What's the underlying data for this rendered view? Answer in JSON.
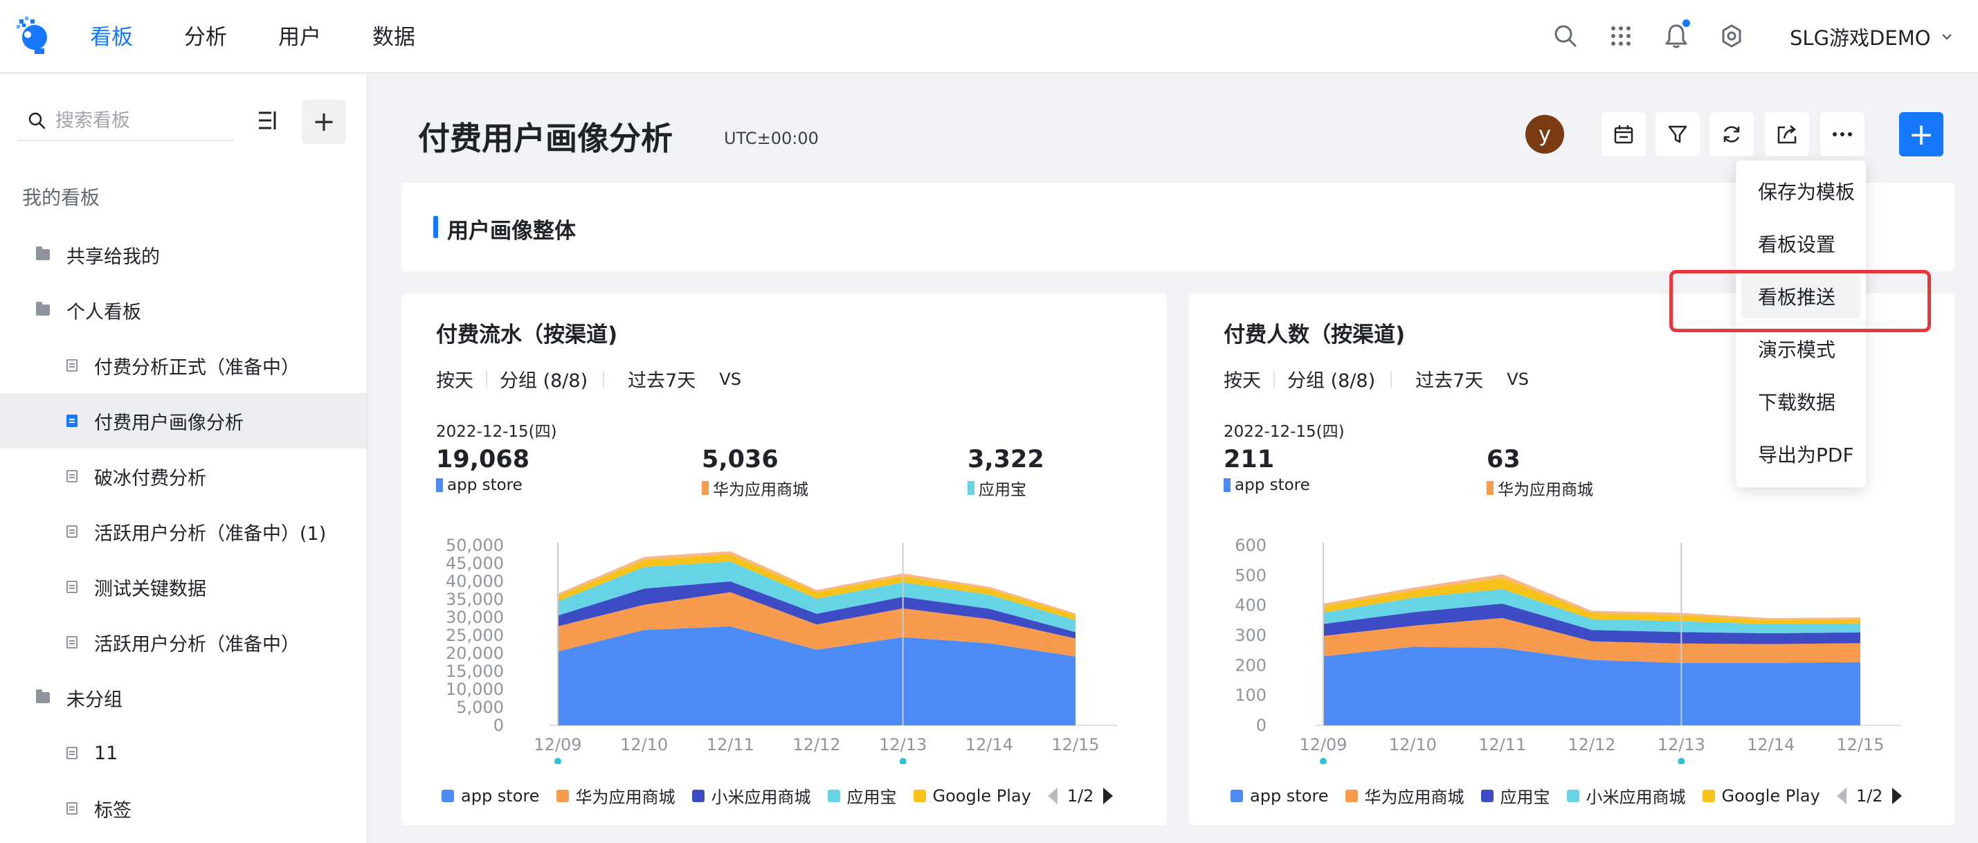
{
  "nav": {
    "items": [
      "看板",
      "分析",
      "用户",
      "数据"
    ],
    "project": "SLG游戏DEMO"
  },
  "sidebar": {
    "search_placeholder": "搜索看板",
    "section_title": "我的看板",
    "tree": [
      {
        "label": "共享给我的",
        "type": "folder",
        "level": 0
      },
      {
        "label": "个人看板",
        "type": "folder",
        "level": 0
      },
      {
        "label": "付费分析正式（准备中）",
        "type": "doc",
        "level": 1
      },
      {
        "label": "付费用户画像分析",
        "type": "doc",
        "level": 1,
        "selected": true
      },
      {
        "label": "破冰付费分析",
        "type": "doc",
        "level": 1
      },
      {
        "label": "活跃用户分析（准备中）(1)",
        "type": "doc",
        "level": 1
      },
      {
        "label": "测试关键数据",
        "type": "doc",
        "level": 1
      },
      {
        "label": "活跃用户分析（准备中）",
        "type": "doc",
        "level": 1
      },
      {
        "label": "未分组",
        "type": "folder",
        "level": 0
      },
      {
        "label": "11",
        "type": "doc",
        "level": 1
      },
      {
        "label": "标签",
        "type": "doc",
        "level": 1
      }
    ]
  },
  "header": {
    "title": "付费用户画像分析",
    "timezone": "UTC±00:00",
    "avatar_letter": "y",
    "tools": [
      "calendar-icon",
      "filter-icon",
      "refresh-icon",
      "share-icon",
      "more-icon"
    ]
  },
  "section": {
    "title": "用户画像整体"
  },
  "dropdown": {
    "items": [
      "保存为模板",
      "看板设置",
      "看板推送",
      "演示模式",
      "下载数据",
      "导出为PDF"
    ],
    "highlighted_index": 2
  },
  "colors": {
    "blue": "#4c8bf5",
    "orange": "#f89b4f",
    "indigo": "#3d4cc4",
    "cyan": "#66d4e4",
    "yellow": "#f7c21a",
    "peach": "#f7b78a",
    "accent": "#1677ff"
  },
  "cards": [
    {
      "title": "付费流水（按渠道)",
      "filters": {
        "granularity": "按天",
        "group": "分组 (8/8)",
        "range": "过去7天",
        "vs": "VS"
      },
      "date": "2022-12-15(四)",
      "metrics": [
        {
          "value": "19,068",
          "name": "app store",
          "color": "#4c8bf5"
        },
        {
          "value": "5,036",
          "name": "华为应用商城",
          "color": "#f89b4f"
        },
        {
          "value": "3,322",
          "name": "应用宝",
          "color": "#66d4e4"
        }
      ],
      "legend": [
        "app store",
        "华为应用商城",
        "小米应用商城",
        "应用宝",
        "Google Play"
      ],
      "page": "1/2"
    },
    {
      "title": "付费人数（按渠道)",
      "filters": {
        "granularity": "按天",
        "group": "分组 (8/8)",
        "range": "过去7天",
        "vs": "VS"
      },
      "date": "2022-12-15(四)",
      "metrics": [
        {
          "value": "211",
          "name": "app store",
          "color": "#4c8bf5"
        },
        {
          "value": "63",
          "name": "华为应用商城",
          "color": "#f89b4f"
        }
      ],
      "legend": [
        "app store",
        "华为应用商城",
        "应用宝",
        "小米应用商城",
        "Google Play"
      ],
      "page": "1/2"
    }
  ],
  "chart_data": [
    {
      "type": "area",
      "stacked": true,
      "categories": [
        "12/09",
        "12/10",
        "12/11",
        "12/12",
        "12/13",
        "12/14",
        "12/15"
      ],
      "ylim": [
        0,
        50000
      ],
      "yticks": [
        "0",
        "5,000",
        "10,000",
        "15,000",
        "20,000",
        "25,000",
        "30,000",
        "35,000",
        "40,000",
        "45,000",
        "50,000"
      ],
      "marked_categories": [
        "12/09",
        "12/13"
      ],
      "series": [
        {
          "name": "app store",
          "color": "#4c8bf5",
          "values": [
            20500,
            26500,
            27500,
            21000,
            24500,
            22800,
            19100
          ]
        },
        {
          "name": "华为应用商城",
          "color": "#f89b4f",
          "values": [
            7000,
            7000,
            9500,
            7000,
            8000,
            6700,
            5000
          ]
        },
        {
          "name": "小米应用商城",
          "color": "#3d4cc4",
          "values": [
            3000,
            4500,
            3000,
            3000,
            3200,
            2900,
            1800
          ]
        },
        {
          "name": "应用宝",
          "color": "#66d4e4",
          "values": [
            4000,
            6000,
            5500,
            4200,
            4000,
            3900,
            3300
          ]
        },
        {
          "name": "Google Play",
          "color": "#f7c21a",
          "values": [
            1500,
            2000,
            2000,
            1800,
            1800,
            1600,
            1400
          ]
        },
        {
          "color": "#f7b78a",
          "values": [
            600,
            800,
            900,
            600,
            700,
            600,
            500
          ]
        }
      ]
    },
    {
      "type": "area",
      "stacked": true,
      "categories": [
        "12/09",
        "12/10",
        "12/11",
        "12/12",
        "12/13",
        "12/14",
        "12/15"
      ],
      "ylim": [
        0,
        600
      ],
      "yticks": [
        "0",
        "100",
        "200",
        "300",
        "400",
        "500",
        "600"
      ],
      "marked_categories": [
        "12/09",
        "12/13"
      ],
      "series": [
        {
          "name": "app store",
          "color": "#4c8bf5",
          "values": [
            230,
            262,
            258,
            218,
            208,
            208,
            211
          ]
        },
        {
          "name": "华为应用商城",
          "color": "#f89b4f",
          "values": [
            68,
            70,
            100,
            62,
            65,
            63,
            63
          ]
        },
        {
          "name": "应用宝",
          "color": "#3d4cc4",
          "values": [
            40,
            45,
            48,
            38,
            38,
            36,
            36
          ]
        },
        {
          "name": "小米应用商城",
          "color": "#66d4e4",
          "values": [
            38,
            48,
            48,
            36,
            36,
            30,
            30
          ]
        },
        {
          "name": "Google Play",
          "color": "#f7c21a",
          "values": [
            22,
            24,
            38,
            20,
            20,
            14,
            14
          ]
        },
        {
          "color": "#f7b78a",
          "values": [
            8,
            10,
            12,
            8,
            8,
            6,
            6
          ]
        }
      ]
    }
  ]
}
